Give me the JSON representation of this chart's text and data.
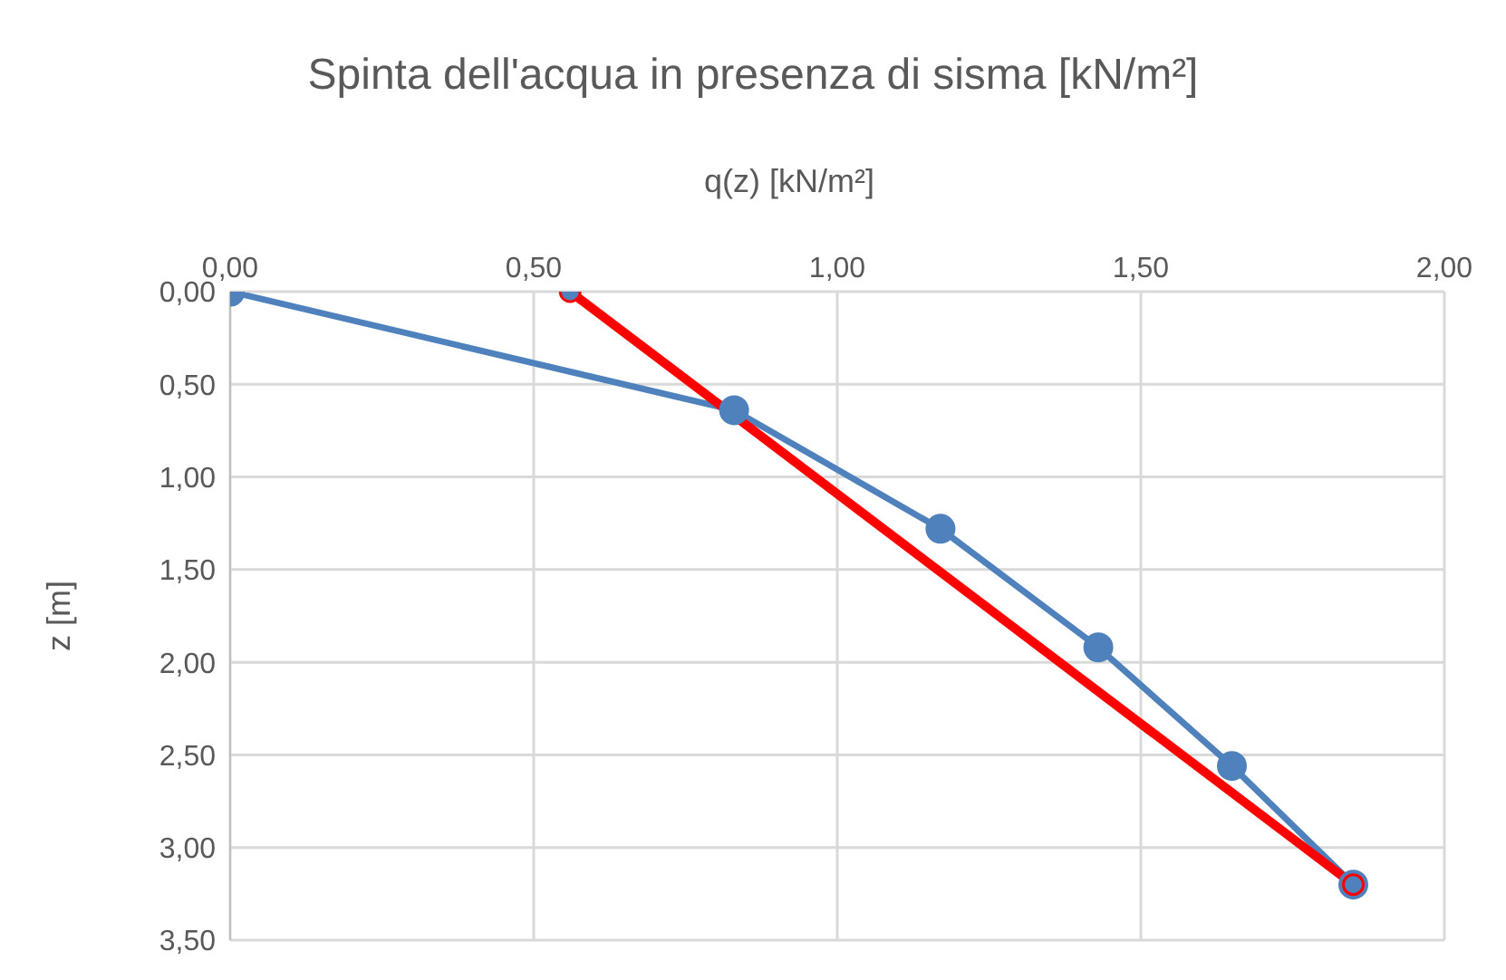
{
  "chart_data": {
    "type": "line",
    "title": "Spinta dell'acqua in presenza di sisma [kN/m²]",
    "xlabel": "q(z) [kN/m²]",
    "ylabel": "z [m]",
    "series": [
      {
        "color": "#4f81bd",
        "x": [
          0,
          0.83,
          1.17,
          1.43,
          1.65,
          1.85
        ],
        "values": [
          0,
          0.64,
          1.28,
          1.92,
          2.56,
          3.2
        ]
      },
      {
        "color": "#ff0000",
        "x": [
          0.56,
          1.85
        ],
        "values": [
          0,
          3.2
        ]
      }
    ],
    "xlim": [
      0,
      2
    ],
    "xticks": [
      {
        "value": 0,
        "label": "0,00"
      },
      {
        "value": 0.5,
        "label": "0,50"
      },
      {
        "value": 1,
        "label": "1,00"
      },
      {
        "value": 1.5,
        "label": "1,50"
      },
      {
        "value": 2,
        "label": "2,00"
      }
    ],
    "ylim": [
      3.5,
      0
    ],
    "yticks": [
      {
        "value": 0,
        "label": "0,00"
      },
      {
        "value": 0.5,
        "label": "0,50"
      },
      {
        "value": 1,
        "label": "1,00"
      },
      {
        "value": 1.5,
        "label": "1,50"
      },
      {
        "value": 2,
        "label": "2,00"
      },
      {
        "value": 2.5,
        "label": "2,50"
      },
      {
        "value": 3,
        "label": "3,00"
      },
      {
        "value": 3.5,
        "label": "3,50"
      }
    ],
    "grid": true,
    "marker": "circle",
    "line_style": "solid"
  }
}
